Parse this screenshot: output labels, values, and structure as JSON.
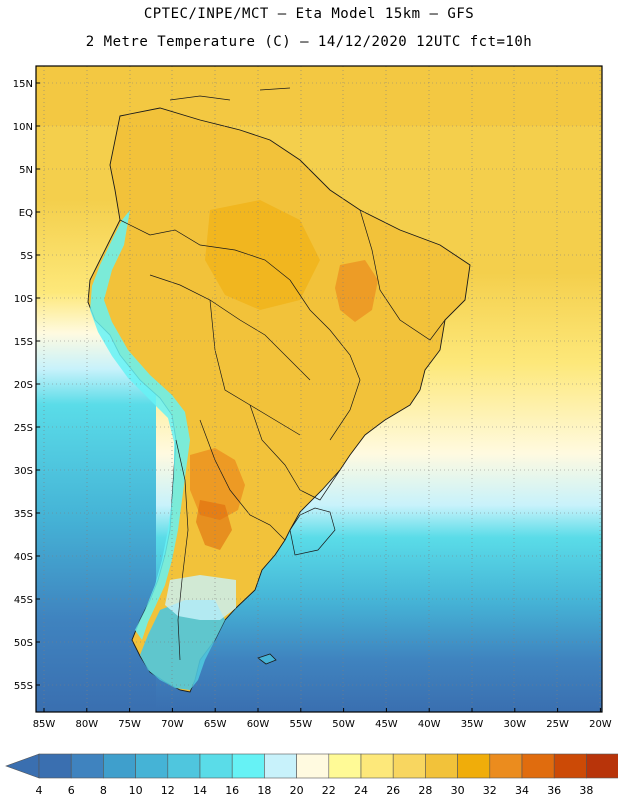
{
  "title": {
    "line1": "CPTEC/INPE/MCT –  Eta Model 15km – GFS",
    "line2": "2 Metre Temperature (C) – 14/12/2020 12UTC fct=10h"
  },
  "map": {
    "lat_labels": [
      "15N",
      "10N",
      "5N",
      "EQ",
      "5S",
      "10S",
      "15S",
      "20S",
      "25S",
      "30S",
      "35S",
      "40S",
      "45S",
      "50S",
      "55S"
    ],
    "lon_labels": [
      "85W",
      "80W",
      "75W",
      "70W",
      "65W",
      "60W",
      "55W",
      "50W",
      "45W",
      "40W",
      "35W",
      "30W",
      "25W",
      "20W"
    ]
  },
  "colorbar": {
    "labels": [
      "4",
      "6",
      "8",
      "10",
      "12",
      "14",
      "16",
      "18",
      "20",
      "22",
      "24",
      "26",
      "28",
      "30",
      "32",
      "34",
      "36",
      "38"
    ],
    "colors": [
      "#3a6fb0",
      "#3f83bf",
      "#3f9fcc",
      "#45b3d6",
      "#4fc6de",
      "#5adce8",
      "#66f2f5",
      "#c8f2fb",
      "#fffae0",
      "#fffa96",
      "#fde87a",
      "#f8d660",
      "#f2c23a",
      "#f0ad0a",
      "#eb8c1e",
      "#e06c0e",
      "#cc4a06",
      "#b8340a"
    ]
  }
}
